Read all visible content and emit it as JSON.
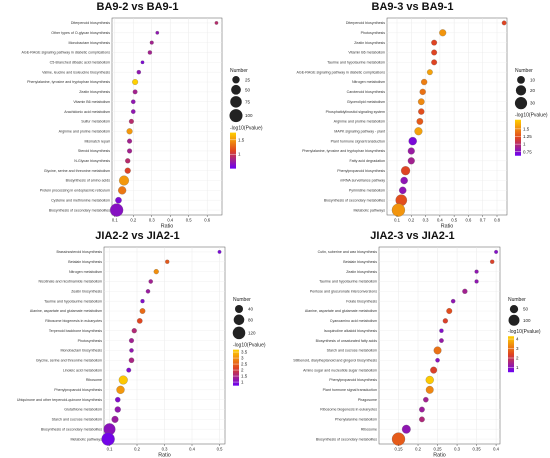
{
  "colors": {
    "low": "#6a00f5",
    "mid": "#e0451f",
    "high": "#ffd000",
    "outline": "#666666"
  },
  "chart_data": [
    {
      "type": "scatter",
      "title": "BA9-2 vs BA9-1",
      "xlabel": "Ratio",
      "xlim": [
        0.085,
        0.68
      ],
      "xticks": [
        0.1,
        0.2,
        0.3,
        0.4,
        0.5,
        0.6
      ],
      "size_legend": {
        "title": "Number",
        "values": [
          25,
          50,
          75,
          100
        ]
      },
      "color_legend": {
        "title": "-log10(Pvalue)",
        "ticks": [
          1.5,
          1.0
        ],
        "min": 0.5,
        "max": 1.75
      },
      "points": [
        {
          "term": "Diterpenoid biosynthesis",
          "ratio": 0.65,
          "number": 2,
          "logp": 0.9
        },
        {
          "term": "Other types of O-glycan biosynthesis",
          "ratio": 0.33,
          "number": 2,
          "logp": 0.7
        },
        {
          "term": "Monobactam biosynthesis",
          "ratio": 0.3,
          "number": 3,
          "logp": 0.8
        },
        {
          "term": "AGE-RAGE signaling pathway in diabetic complications",
          "ratio": 0.29,
          "number": 4,
          "logp": 0.8
        },
        {
          "term": "C5-Branched dibasic acid metabolism",
          "ratio": 0.25,
          "number": 2,
          "logp": 0.6
        },
        {
          "term": "Valine, leucine and isoleucine biosynthesis",
          "ratio": 0.23,
          "number": 4,
          "logp": 0.7
        },
        {
          "term": "Phenylalanine, tyrosine and tryptophan biosynthesis",
          "ratio": 0.21,
          "number": 12,
          "logp": 1.75
        },
        {
          "term": "Zeatin biosynthesis",
          "ratio": 0.21,
          "number": 6,
          "logp": 0.8
        },
        {
          "term": "Vitamin B6 metabolism",
          "ratio": 0.2,
          "number": 5,
          "logp": 0.7
        },
        {
          "term": "Arachidonic acid metabolism",
          "ratio": 0.2,
          "number": 5,
          "logp": 0.7
        },
        {
          "term": "Sulfur metabolism",
          "ratio": 0.19,
          "number": 7,
          "logp": 0.9
        },
        {
          "term": "Arginine and proline metabolism",
          "ratio": 0.18,
          "number": 13,
          "logp": 1.5
        },
        {
          "term": "Mismatch repair",
          "ratio": 0.18,
          "number": 7,
          "logp": 0.8
        },
        {
          "term": "Steroid biosynthesis",
          "ratio": 0.18,
          "number": 7,
          "logp": 0.8
        },
        {
          "term": "N-Glycan biosynthesis",
          "ratio": 0.17,
          "number": 8,
          "logp": 0.9
        },
        {
          "term": "Glycine, serine and threonine metabolism",
          "ratio": 0.17,
          "number": 13,
          "logp": 1.1
        },
        {
          "term": "Biosynthesis of amino acids",
          "ratio": 0.15,
          "number": 50,
          "logp": 1.5
        },
        {
          "term": "Protein processing in endoplasmic reticulum",
          "ratio": 0.14,
          "number": 30,
          "logp": 1.35
        },
        {
          "term": "Cysteine and methionine metabolism",
          "ratio": 0.12,
          "number": 16,
          "logp": 0.6
        },
        {
          "term": "Biosynthesis of secondary metabolites",
          "ratio": 0.11,
          "number": 100,
          "logp": 0.65
        }
      ]
    },
    {
      "type": "scatter",
      "title": "BA9-3 vs BA9-1",
      "xlabel": "Ratio",
      "xlim": [
        0.03,
        0.87
      ],
      "xticks": [
        0.1,
        0.2,
        0.3,
        0.4,
        0.5,
        0.6,
        0.7,
        0.8
      ],
      "size_legend": {
        "title": "Number",
        "values": [
          10,
          20,
          30
        ]
      },
      "color_legend": {
        "title": "-log10(Pvalue)",
        "ticks": [
          1.5,
          1.25,
          1.0,
          0.75
        ],
        "min": 0.62,
        "max": 1.8
      },
      "points": [
        {
          "term": "Diterpenoid biosynthesis",
          "ratio": 0.85,
          "number": 2,
          "logp": 1.2
        },
        {
          "term": "Photosynthesis",
          "ratio": 0.42,
          "number": 7,
          "logp": 1.55
        },
        {
          "term": "Zeatin biosynthesis",
          "ratio": 0.36,
          "number": 4,
          "logp": 1.2
        },
        {
          "term": "Vitamin B6 metabolism",
          "ratio": 0.36,
          "number": 4,
          "logp": 1.2
        },
        {
          "term": "Taurine and hypotaurine metabolism",
          "ratio": 0.36,
          "number": 4,
          "logp": 1.2
        },
        {
          "term": "AGE-RAGE signaling pathway in diabetic complications",
          "ratio": 0.33,
          "number": 4,
          "logp": 1.6
        },
        {
          "term": "Nitrogen metabolism",
          "ratio": 0.29,
          "number": 5,
          "logp": 1.45
        },
        {
          "term": "Carotenoid biosynthesis",
          "ratio": 0.28,
          "number": 5,
          "logp": 1.4
        },
        {
          "term": "Glycerolipid metabolism",
          "ratio": 0.27,
          "number": 6,
          "logp": 1.5
        },
        {
          "term": "Phosphatidylinositol signaling system",
          "ratio": 0.27,
          "number": 5,
          "logp": 1.25
        },
        {
          "term": "Arginine and proline metabolism",
          "ratio": 0.26,
          "number": 6,
          "logp": 1.3
        },
        {
          "term": "MAPK signaling pathway - plant",
          "ratio": 0.25,
          "number": 10,
          "logp": 1.6
        },
        {
          "term": "Plant hormone signal transduction",
          "ratio": 0.21,
          "number": 11,
          "logp": 0.7
        },
        {
          "term": "Phenylalanine, tyrosine and tryptophan biosynthesis",
          "ratio": 0.2,
          "number": 7,
          "logp": 0.85
        },
        {
          "term": "Fatty acid degradation",
          "ratio": 0.2,
          "number": 7,
          "logp": 0.9
        },
        {
          "term": "Phenylpropanoid biosynthesis",
          "ratio": 0.16,
          "number": 14,
          "logp": 1.2
        },
        {
          "term": "mRNA surveillance pathway",
          "ratio": 0.15,
          "number": 8,
          "logp": 0.8
        },
        {
          "term": "Pyrimidine metabolism",
          "ratio": 0.14,
          "number": 8,
          "logp": 0.8
        },
        {
          "term": "Biosynthesis of secondary metabolites",
          "ratio": 0.13,
          "number": 25,
          "logp": 1.25
        },
        {
          "term": "Metabolic pathways",
          "ratio": 0.11,
          "number": 35,
          "logp": 1.55
        }
      ]
    },
    {
      "type": "scatter",
      "title": "JIA2-2 vs JIA2-1",
      "xlabel": "Ratio",
      "xlim": [
        0.08,
        0.52
      ],
      "xticks": [
        0.1,
        0.2,
        0.3,
        0.4,
        0.5
      ],
      "size_legend": {
        "title": "Number",
        "values": [
          40,
          80,
          120
        ]
      },
      "color_legend": {
        "title": "-log10(Pvalue)",
        "ticks": [
          3.5,
          3.0,
          2.5,
          2.0,
          1.5,
          1.0
        ],
        "min": 0.7,
        "max": 3.7
      },
      "points": [
        {
          "term": "Brassinosteroid biosynthesis",
          "ratio": 0.5,
          "number": 3,
          "logp": 0.9
        },
        {
          "term": "Betalain biosynthesis",
          "ratio": 0.31,
          "number": 5,
          "logp": 2.4
        },
        {
          "term": "Nitrogen metabolism",
          "ratio": 0.27,
          "number": 10,
          "logp": 3.0
        },
        {
          "term": "Nicotinate and nicotinamide metabolism",
          "ratio": 0.25,
          "number": 6,
          "logp": 1.4
        },
        {
          "term": "Zeatin biosynthesis",
          "ratio": 0.24,
          "number": 6,
          "logp": 1.3
        },
        {
          "term": "Taurine and hypotaurine metabolism",
          "ratio": 0.22,
          "number": 5,
          "logp": 1.0
        },
        {
          "term": "Alanine, aspartate and glutamate metabolism",
          "ratio": 0.22,
          "number": 14,
          "logp": 2.6
        },
        {
          "term": "Ribosome biogenesis in eukaryotes",
          "ratio": 0.21,
          "number": 13,
          "logp": 2.2
        },
        {
          "term": "Terpenoid backbone biosynthesis",
          "ratio": 0.19,
          "number": 10,
          "logp": 1.6
        },
        {
          "term": "Photosynthesis",
          "ratio": 0.18,
          "number": 9,
          "logp": 1.4
        },
        {
          "term": "Monobactam biosynthesis",
          "ratio": 0.18,
          "number": 6,
          "logp": 1.2
        },
        {
          "term": "Glycine, serine and threonine metabolism",
          "ratio": 0.18,
          "number": 12,
          "logp": 1.5
        },
        {
          "term": "Linoleic acid metabolism",
          "ratio": 0.17,
          "number": 8,
          "logp": 1.0
        },
        {
          "term": "Ribosome",
          "ratio": 0.15,
          "number": 50,
          "logp": 3.6
        },
        {
          "term": "Phenylpropanoid biosynthesis",
          "ratio": 0.14,
          "number": 40,
          "logp": 3.1
        },
        {
          "term": "Ubiquinone and other terpenoid-quinone biosynthesis",
          "ratio": 0.13,
          "number": 12,
          "logp": 1.0
        },
        {
          "term": "Glutathione metabolism",
          "ratio": 0.13,
          "number": 18,
          "logp": 1.2
        },
        {
          "term": "Starch and sucrose metabolism",
          "ratio": 0.12,
          "number": 25,
          "logp": 1.3
        },
        {
          "term": "Biosynthesis of secondary metabolites",
          "ratio": 0.1,
          "number": 100,
          "logp": 1.1
        },
        {
          "term": "Metabolic pathways",
          "ratio": 0.095,
          "number": 130,
          "logp": 0.8
        }
      ]
    },
    {
      "type": "scatter",
      "title": "JIA2-3 vs JIA2-1",
      "xlabel": "Ratio",
      "xlim": [
        0.1,
        0.41
      ],
      "xticks": [
        0.15,
        0.2,
        0.25,
        0.3,
        0.35,
        0.4
      ],
      "size_legend": {
        "title": "Number",
        "values": [
          50,
          100
        ]
      },
      "color_legend": {
        "title": "-log10(Pvalue)",
        "ticks": [
          4,
          3,
          2,
          1
        ],
        "min": 0.5,
        "max": 4.3
      },
      "points": [
        {
          "term": "Cutin, suberine and wax biosynthesis",
          "ratio": 0.4,
          "number": 4,
          "logp": 0.9
        },
        {
          "term": "Betalain biosynthesis",
          "ratio": 0.39,
          "number": 6,
          "logp": 2.3
        },
        {
          "term": "Zeatin biosynthesis",
          "ratio": 0.35,
          "number": 5,
          "logp": 1.1
        },
        {
          "term": "Taurine and hypotaurine metabolism",
          "ratio": 0.35,
          "number": 5,
          "logp": 1.1
        },
        {
          "term": "Pentose and glucuronate interconversions",
          "ratio": 0.32,
          "number": 12,
          "logp": 1.4
        },
        {
          "term": "Folate biosynthesis",
          "ratio": 0.29,
          "number": 7,
          "logp": 1.1
        },
        {
          "term": "Alanine, aspartate and glutamate metabolism",
          "ratio": 0.28,
          "number": 18,
          "logp": 2.5
        },
        {
          "term": "Cyanoamino acid metabolism",
          "ratio": 0.27,
          "number": 12,
          "logp": 2.3
        },
        {
          "term": "Isoquinoline alkaloid biosynthesis",
          "ratio": 0.26,
          "number": 6,
          "logp": 0.9
        },
        {
          "term": "Biosynthesis of unsaturated fatty acids",
          "ratio": 0.26,
          "number": 8,
          "logp": 1.2
        },
        {
          "term": "Starch and sucrose metabolism",
          "ratio": 0.25,
          "number": 40,
          "logp": 3.0
        },
        {
          "term": "Stilbenoid, diarylheptanoid and gingerol biosynthesis",
          "ratio": 0.25,
          "number": 7,
          "logp": 1.0
        },
        {
          "term": "Amino sugar and nucleotide sugar metabolism",
          "ratio": 0.24,
          "number": 28,
          "logp": 2.3
        },
        {
          "term": "Phenylpropanoid biosynthesis",
          "ratio": 0.23,
          "number": 45,
          "logp": 4.2
        },
        {
          "term": "Plant hormone signal transduction",
          "ratio": 0.23,
          "number": 40,
          "logp": 3.3
        },
        {
          "term": "Phagosome",
          "ratio": 0.22,
          "number": 14,
          "logp": 1.4
        },
        {
          "term": "Ribosome biogenesis in eukaryotes",
          "ratio": 0.21,
          "number": 16,
          "logp": 1.3
        },
        {
          "term": "Phenylalanine metabolism",
          "ratio": 0.21,
          "number": 16,
          "logp": 1.6
        },
        {
          "term": "Ribosome",
          "ratio": 0.17,
          "number": 55,
          "logp": 1.1
        },
        {
          "term": "Biosynthesis of secondary metabolites",
          "ratio": 0.15,
          "number": 150,
          "logp": 2.7
        }
      ]
    }
  ]
}
